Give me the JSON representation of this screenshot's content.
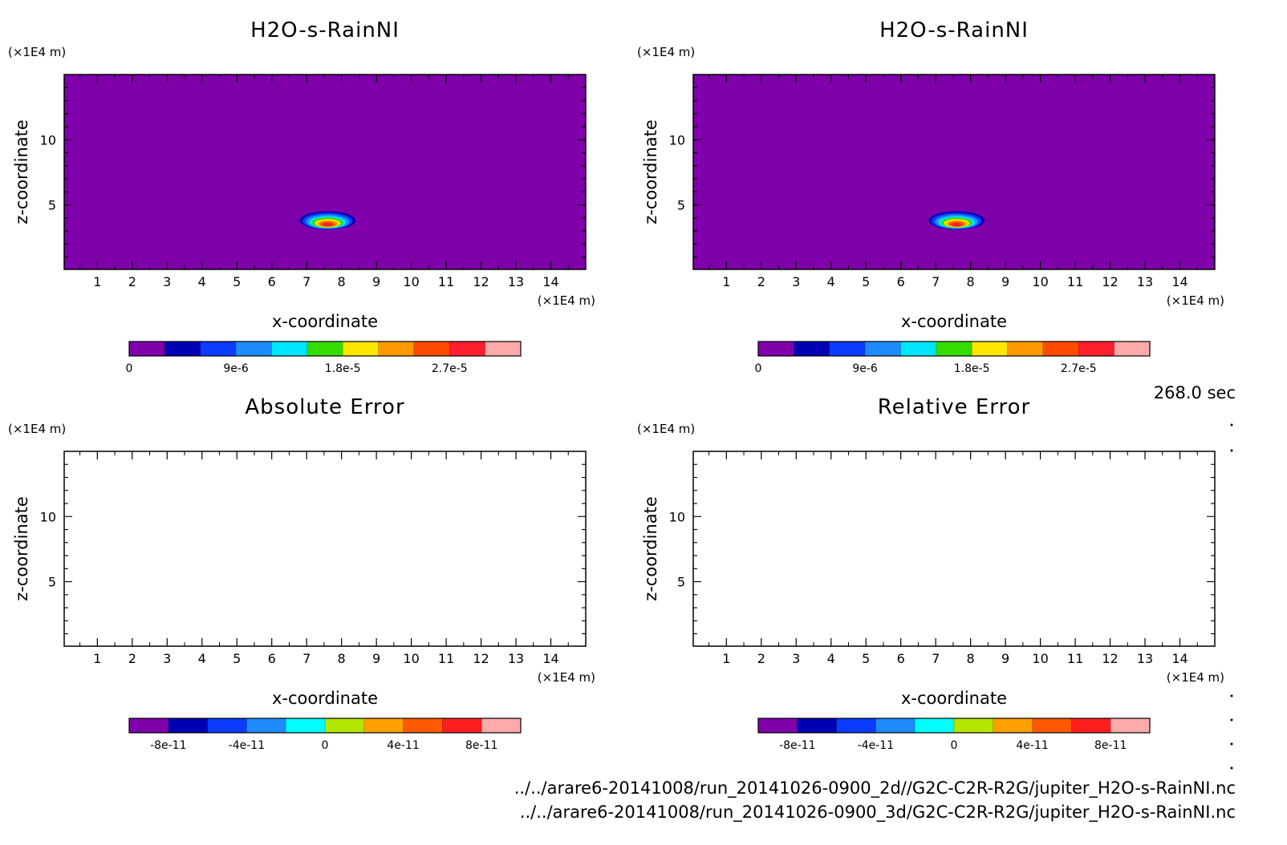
{
  "time_label": "268.0 sec",
  "files": [
    "../../arare6-20141008/run_20141026-0900_2d//G2C-C2R-R2G/jupiter_H2O-s-RainNI.nc",
    "../../arare6-20141008/run_20141026-0900_3d/G2C-C2R-R2G/jupiter_H2O-s-RainNI.nc"
  ],
  "chart_data": [
    {
      "type": "heatmap",
      "title": "H2O-s-RainNI",
      "xlabel": "x-coordinate",
      "ylabel": "z-coordinate",
      "x_unit": "(×1E4 m)",
      "y_unit": "(×1E4 m)",
      "xlim": [
        0.05,
        15.0
      ],
      "ylim": [
        0.05,
        15.0
      ],
      "x_ticks": [
        1,
        2,
        3,
        4,
        5,
        6,
        7,
        8,
        9,
        10,
        11,
        12,
        13,
        14
      ],
      "y_ticks": [
        5,
        10
      ],
      "background_color": "#7f00aa",
      "field": {
        "description": "localized blob",
        "center": [
          7.6,
          3.8
        ],
        "half_width": [
          0.8,
          0.7
        ],
        "max_value": 2.7e-05
      },
      "colorbar": {
        "levels": [
          0,
          3e-06,
          6e-06,
          9e-06,
          1.2e-05,
          1.5e-05,
          1.8e-05,
          2.1e-05,
          2.4e-05,
          2.7e-05,
          3e-05
        ],
        "colors": [
          "#7f00aa",
          "#0000b4",
          "#0a3cff",
          "#1e8cff",
          "#00e6ff",
          "#33dd00",
          "#ffe600",
          "#ff9900",
          "#ff4b00",
          "#ff1e2d",
          "#ffaaaa"
        ],
        "tick_labels": [
          "0",
          "9e-6",
          "1.8e-5",
          "2.7e-5"
        ],
        "tick_indices": [
          0,
          3,
          6,
          9
        ]
      }
    },
    {
      "type": "heatmap",
      "title": "H2O-s-RainNI",
      "xlabel": "x-coordinate",
      "ylabel": "z-coordinate",
      "x_unit": "(×1E4 m)",
      "y_unit": "(×1E4 m)",
      "xlim": [
        0.05,
        15.0
      ],
      "ylim": [
        0.05,
        15.0
      ],
      "x_ticks": [
        1,
        2,
        3,
        4,
        5,
        6,
        7,
        8,
        9,
        10,
        11,
        12,
        13,
        14
      ],
      "y_ticks": [
        5,
        10
      ],
      "background_color": "#7f00aa",
      "field": {
        "description": "localized blob",
        "center": [
          7.6,
          3.8
        ],
        "half_width": [
          0.8,
          0.7
        ],
        "max_value": 2.7e-05
      },
      "colorbar": {
        "levels": [
          0,
          3e-06,
          6e-06,
          9e-06,
          1.2e-05,
          1.5e-05,
          1.8e-05,
          2.1e-05,
          2.4e-05,
          2.7e-05,
          3e-05
        ],
        "colors": [
          "#7f00aa",
          "#0000b4",
          "#0a3cff",
          "#1e8cff",
          "#00e6ff",
          "#33dd00",
          "#ffe600",
          "#ff9900",
          "#ff4b00",
          "#ff1e2d",
          "#ffaaaa"
        ],
        "tick_labels": [
          "0",
          "9e-6",
          "1.8e-5",
          "2.7e-5"
        ],
        "tick_indices": [
          0,
          3,
          6,
          9
        ]
      }
    },
    {
      "type": "heatmap",
      "title": "Absolute Error",
      "xlabel": "x-coordinate",
      "ylabel": "z-coordinate",
      "x_unit": "(×1E4 m)",
      "y_unit": "(×1E4 m)",
      "xlim": [
        0.05,
        15.0
      ],
      "ylim": [
        0.05,
        15.0
      ],
      "x_ticks": [
        1,
        2,
        3,
        4,
        5,
        6,
        7,
        8,
        9,
        10,
        11,
        12,
        13,
        14
      ],
      "y_ticks": [
        5,
        10
      ],
      "background_color": "#ffffff",
      "field": null,
      "colorbar": {
        "levels": [
          -1e-10,
          -8e-11,
          -6e-11,
          -4e-11,
          -2e-11,
          0,
          2e-11,
          4e-11,
          6e-11,
          8e-11,
          1e-10
        ],
        "colors": [
          "#7f00aa",
          "#0000b4",
          "#0a3cff",
          "#1e8cff",
          "#00ffff",
          "#b4e600",
          "#ffa000",
          "#ff5a00",
          "#ff1e1e",
          "#ffaaaa"
        ],
        "tick_labels": [
          "-8e-11",
          "-4e-11",
          "0",
          "4e-11",
          "8e-11"
        ],
        "tick_indices": [
          1,
          3,
          5,
          7,
          9
        ]
      }
    },
    {
      "type": "heatmap",
      "title": "Relative Error",
      "xlabel": "x-coordinate",
      "ylabel": "z-coordinate",
      "x_unit": "(×1E4 m)",
      "y_unit": "(×1E4 m)",
      "xlim": [
        0.05,
        15.0
      ],
      "ylim": [
        0.05,
        15.0
      ],
      "x_ticks": [
        1,
        2,
        3,
        4,
        5,
        6,
        7,
        8,
        9,
        10,
        11,
        12,
        13,
        14
      ],
      "y_ticks": [
        5,
        10
      ],
      "background_color": "#ffffff",
      "field": null,
      "colorbar": {
        "levels": [
          -1e-10,
          -8e-11,
          -6e-11,
          -4e-11,
          -2e-11,
          0,
          2e-11,
          4e-11,
          6e-11,
          8e-11,
          1e-10
        ],
        "colors": [
          "#7f00aa",
          "#0000b4",
          "#0a3cff",
          "#1e8cff",
          "#00ffff",
          "#b4e600",
          "#ffa000",
          "#ff5a00",
          "#ff1e1e",
          "#ffaaaa"
        ],
        "tick_labels": [
          "-8e-11",
          "-4e-11",
          "0",
          "4e-11",
          "8e-11"
        ],
        "tick_indices": [
          1,
          3,
          5,
          7,
          9
        ]
      }
    }
  ]
}
